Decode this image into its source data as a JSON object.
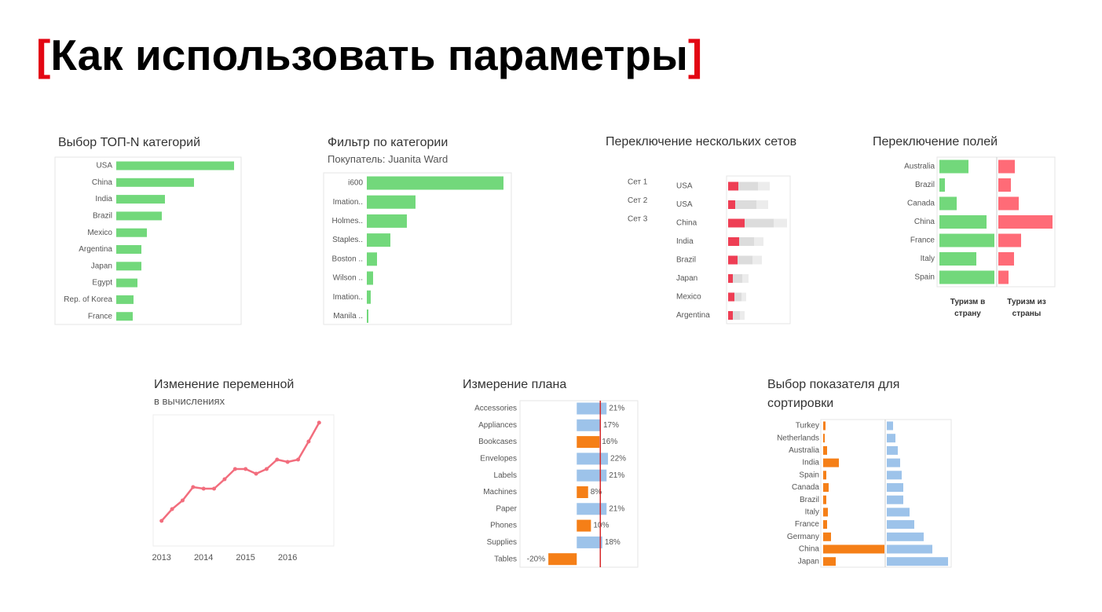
{
  "title": "Как использовать параметры",
  "brackets": [
    "[",
    "]"
  ],
  "chart_data": [
    {
      "type": "bar",
      "title": "Выбор ТОП-N категорий",
      "categories": [
        "USA",
        "China",
        "India",
        "Brazil",
        "Mexico",
        "Argentina",
        "Japan",
        "Egypt",
        "Rep. of Korea",
        "France"
      ],
      "values": [
        150,
        99,
        62,
        58,
        39,
        32,
        32,
        27,
        22,
        21
      ],
      "color": "#72d87b",
      "xlim": [
        0,
        160
      ]
    },
    {
      "type": "bar",
      "title": "Фильтр по категории",
      "subtitle": "Покупатель: Juanita Ward",
      "categories": [
        "i600",
        "Imation..",
        "Holmes..",
        "Staples..",
        "Boston ..",
        "Wilson ..",
        "Imation..",
        "Manila .."
      ],
      "values": [
        174,
        62,
        51,
        30,
        13,
        8,
        5,
        2
      ],
      "color": "#72d87b",
      "xlim": [
        0,
        184
      ]
    },
    {
      "type": "bar",
      "title": "Переключение нескольких сетов",
      "legend": [
        "Сет 1",
        "Сет 2",
        "Сет 3"
      ],
      "overlay": true,
      "categories": [
        "USA",
        "USA",
        "China",
        "India",
        "Brazil",
        "Japan",
        "Mexico",
        "Argentina"
      ],
      "series": [
        {
          "color": "#ececec",
          "values": [
            53,
            51,
            75,
            45,
            43,
            26,
            23,
            21
          ]
        },
        {
          "color": "#dcdcdc",
          "values": [
            38,
            36,
            58,
            33,
            31,
            18,
            17,
            15
          ]
        },
        {
          "color": "#ee3e54",
          "values": [
            13,
            9,
            21,
            14,
            12,
            6,
            8,
            6
          ]
        }
      ],
      "xlim": [
        0,
        79
      ]
    },
    {
      "type": "bar",
      "title": "Переключение полей",
      "categories": [
        "Australia",
        "Brazil",
        "Canada",
        "China",
        "France",
        "Italy",
        "Spain"
      ],
      "series": [
        {
          "name": "Туризм в страну",
          "color": "#72d87b",
          "values": [
            37,
            7,
            22,
            60,
            70,
            47,
            70
          ],
          "xlim": [
            0,
            72
          ]
        },
        {
          "name": "Туризм из страны",
          "color": "#ff6b77",
          "values": [
            21,
            16,
            26,
            69,
            29,
            20,
            13
          ],
          "xlim": [
            0,
            72
          ]
        }
      ]
    },
    {
      "type": "line",
      "title": "Изменение переменной",
      "subtitle": "в вычислениях",
      "x": [
        2013,
        2013.25,
        2013.5,
        2013.75,
        2014,
        2014.25,
        2014.5,
        2014.75,
        2015,
        2015.25,
        2015.5,
        2015.75,
        2016,
        2016.25,
        2016.5,
        2016.75
      ],
      "values": [
        37,
        52,
        63,
        80,
        78,
        78,
        90,
        103,
        103,
        97,
        103,
        115,
        112,
        115,
        138,
        162
      ],
      "color": "#f26d7d",
      "xlim": [
        2012.8,
        2017.1
      ],
      "ylim": [
        0,
        175
      ],
      "xticks": [
        2013,
        2014,
        2015,
        2016
      ]
    },
    {
      "type": "bar",
      "title": "Измерение плана",
      "categories": [
        "Accessories",
        "Appliances",
        "Bookcases",
        "Envelopes",
        "Labels",
        "Machines",
        "Paper",
        "Phones",
        "Supplies",
        "Tables"
      ],
      "values": [
        21,
        17,
        16,
        22,
        21,
        8,
        21,
        10,
        18,
        -20
      ],
      "value_labels": [
        "21%",
        "17%",
        "16%",
        "22%",
        "21%",
        "8%",
        "21%",
        "10%",
        "18%",
        "-20%"
      ],
      "color": "#9dc3ea",
      "below_color": "#f57f17",
      "target": 16.6,
      "xlim": [
        -40,
        43
      ]
    },
    {
      "type": "bar",
      "title": "Выбор показателя для сортировки",
      "categories": [
        "Turkey",
        "Netherlands",
        "Australia",
        "India",
        "Spain",
        "Canada",
        "Brazil",
        "Italy",
        "France",
        "Germany",
        "China",
        "Japan"
      ],
      "series": [
        {
          "color": "#f57f17",
          "values": [
            3,
            2,
            5,
            20,
            4,
            7,
            4,
            6,
            5,
            10,
            78,
            16
          ],
          "xlim": [
            0,
            80
          ]
        },
        {
          "color": "#9dc3ea",
          "values": [
            8,
            11,
            14,
            17,
            19,
            21,
            21,
            29,
            35,
            47,
            58,
            78
          ],
          "xlim": [
            0,
            82
          ]
        }
      ]
    }
  ]
}
